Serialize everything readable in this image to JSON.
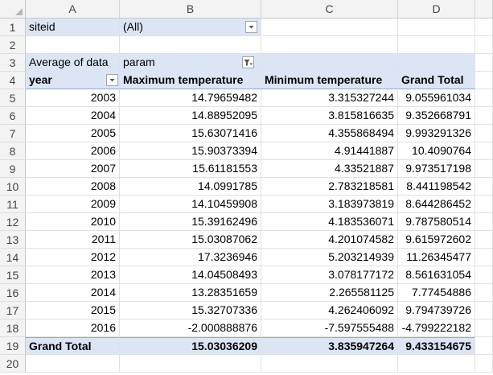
{
  "columns": [
    "A",
    "B",
    "C",
    "D"
  ],
  "rows": [
    "1",
    "2",
    "3",
    "4",
    "5",
    "6",
    "7",
    "8",
    "9",
    "10",
    "11",
    "12",
    "13",
    "14",
    "15",
    "16",
    "17",
    "18",
    "19",
    "20"
  ],
  "filter": {
    "label": "siteid",
    "value": "(All)"
  },
  "pivot": {
    "value_label": "Average of data",
    "column_field": "param",
    "row_field": "year",
    "headers": [
      "Maximum temperature",
      "Minimum temperature",
      "Grand Total"
    ],
    "records": [
      {
        "year": "2003",
        "max": "14.79659482",
        "min": "3.315327244",
        "total": "9.055961034"
      },
      {
        "year": "2004",
        "max": "14.88952095",
        "min": "3.815816635",
        "total": "9.352668791"
      },
      {
        "year": "2005",
        "max": "15.63071416",
        "min": "4.355868494",
        "total": "9.993291326"
      },
      {
        "year": "2006",
        "max": "15.90373394",
        "min": "4.91441887",
        "total": "10.4090764"
      },
      {
        "year": "2007",
        "max": "15.61181553",
        "min": "4.33521887",
        "total": "9.973517198"
      },
      {
        "year": "2008",
        "max": "14.0991785",
        "min": "2.783218581",
        "total": "8.441198542"
      },
      {
        "year": "2009",
        "max": "14.10459908",
        "min": "3.183973819",
        "total": "8.644286452"
      },
      {
        "year": "2010",
        "max": "15.39162496",
        "min": "4.183536071",
        "total": "9.787580514"
      },
      {
        "year": "2011",
        "max": "15.03087062",
        "min": "4.201074582",
        "total": "9.615972602"
      },
      {
        "year": "2012",
        "max": "17.3236946",
        "min": "5.203214939",
        "total": "11.26345477"
      },
      {
        "year": "2013",
        "max": "14.04508493",
        "min": "3.078177172",
        "total": "8.561631054"
      },
      {
        "year": "2014",
        "max": "13.28351659",
        "min": "2.265581125",
        "total": "7.77454886"
      },
      {
        "year": "2015",
        "max": "15.32707336",
        "min": "4.262406092",
        "total": "9.794739726"
      },
      {
        "year": "2016",
        "max": "-2.000888876",
        "min": "-7.597555488",
        "total": "-4.799222182"
      }
    ],
    "grand_total": {
      "label": "Grand Total",
      "max": "15.03036209",
      "min": "3.835947264",
      "total": "9.433154675"
    }
  }
}
